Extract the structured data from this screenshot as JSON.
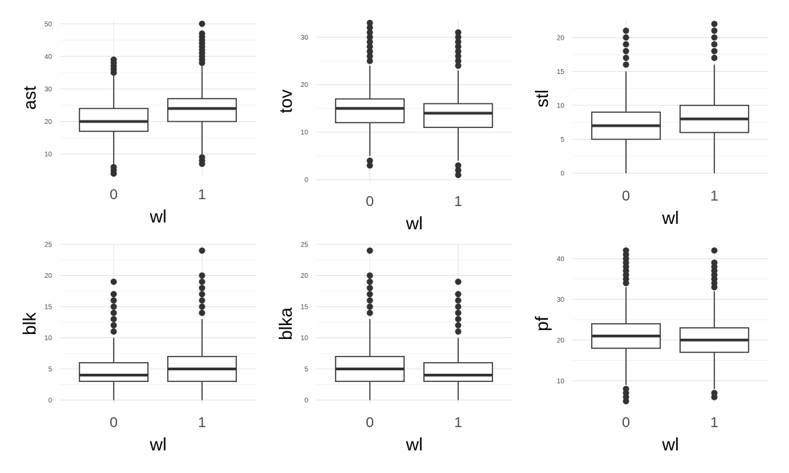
{
  "chart_data": [
    {
      "type": "box",
      "xlabel": "wl",
      "ylabel": "ast",
      "categories": [
        "0",
        "1"
      ],
      "ylim": [
        3.5,
        51
      ],
      "yticks": [
        10,
        20,
        30,
        40,
        50
      ],
      "yminor": [
        15,
        25,
        35,
        45
      ],
      "boxes": [
        {
          "category": "0",
          "q1": 17,
          "median": 20,
          "q3": 24,
          "whisker_low": 7,
          "whisker_high": 34,
          "outliers": [
            4,
            5,
            6,
            35,
            36,
            37,
            38,
            39
          ]
        },
        {
          "category": "1",
          "q1": 20,
          "median": 24,
          "q3": 27,
          "whisker_low": 10,
          "whisker_high": 37,
          "outliers": [
            7,
            8,
            9,
            38,
            39,
            40,
            41,
            42,
            43,
            44,
            45,
            46,
            47,
            50
          ]
        }
      ]
    },
    {
      "type": "box",
      "xlabel": "wl",
      "ylabel": "tov",
      "categories": [
        "0",
        "1"
      ],
      "ylim": [
        -0.5,
        33.5
      ],
      "yticks": [
        0,
        10,
        20,
        30
      ],
      "yminor": [
        5,
        15,
        25
      ],
      "boxes": [
        {
          "category": "0",
          "q1": 12,
          "median": 15,
          "q3": 17,
          "whisker_low": 5,
          "whisker_high": 24,
          "outliers": [
            3,
            4,
            25,
            26,
            27,
            28,
            29,
            30,
            31,
            32,
            33
          ]
        },
        {
          "category": "1",
          "q1": 11,
          "median": 14,
          "q3": 16,
          "whisker_low": 4,
          "whisker_high": 23,
          "outliers": [
            1,
            2,
            3,
            24,
            25,
            26,
            27,
            28,
            29,
            30,
            31
          ]
        }
      ]
    },
    {
      "type": "box",
      "xlabel": "wl",
      "ylabel": "stl",
      "categories": [
        "0",
        "1"
      ],
      "ylim": [
        -0.5,
        22.5
      ],
      "yticks": [
        0,
        5,
        10,
        15,
        20
      ],
      "yminor": [
        2.5,
        7.5,
        12.5,
        17.5
      ],
      "boxes": [
        {
          "category": "0",
          "q1": 5,
          "median": 7,
          "q3": 9,
          "whisker_low": 0,
          "whisker_high": 15,
          "outliers": [
            16,
            17,
            18,
            19,
            20,
            21
          ]
        },
        {
          "category": "1",
          "q1": 6,
          "median": 8,
          "q3": 10,
          "whisker_low": 0,
          "whisker_high": 16,
          "outliers": [
            17,
            18,
            19,
            20,
            21,
            22
          ]
        }
      ]
    },
    {
      "type": "box",
      "xlabel": "wl",
      "ylabel": "blk",
      "categories": [
        "0",
        "1"
      ],
      "ylim": [
        -0.5,
        25
      ],
      "yticks": [
        0,
        5,
        10,
        15,
        20,
        25
      ],
      "yminor": [
        2.5,
        7.5,
        12.5,
        17.5,
        22.5
      ],
      "boxes": [
        {
          "category": "0",
          "q1": 3,
          "median": 4,
          "q3": 6,
          "whisker_low": 0,
          "whisker_high": 10,
          "outliers": [
            11,
            12,
            13,
            14,
            15,
            16,
            17,
            19
          ]
        },
        {
          "category": "1",
          "q1": 3,
          "median": 5,
          "q3": 7,
          "whisker_low": 0,
          "whisker_high": 13,
          "outliers": [
            14,
            15,
            16,
            17,
            18,
            19,
            20,
            24
          ]
        }
      ]
    },
    {
      "type": "box",
      "xlabel": "wl",
      "ylabel": "blka",
      "categories": [
        "0",
        "1"
      ],
      "ylim": [
        -0.5,
        25
      ],
      "yticks": [
        0,
        5,
        10,
        15,
        20,
        25
      ],
      "yminor": [
        2.5,
        7.5,
        12.5,
        17.5,
        22.5
      ],
      "boxes": [
        {
          "category": "0",
          "q1": 3,
          "median": 5,
          "q3": 7,
          "whisker_low": 0,
          "whisker_high": 13,
          "outliers": [
            14,
            15,
            16,
            17,
            18,
            19,
            20,
            24
          ]
        },
        {
          "category": "1",
          "q1": 3,
          "median": 4,
          "q3": 6,
          "whisker_low": 0,
          "whisker_high": 10,
          "outliers": [
            11,
            12,
            13,
            14,
            15,
            16,
            17,
            19
          ]
        }
      ]
    },
    {
      "type": "box",
      "xlabel": "wl",
      "ylabel": "pf",
      "categories": [
        "0",
        "1"
      ],
      "ylim": [
        4.5,
        43.5
      ],
      "yticks": [
        10,
        20,
        30,
        40
      ],
      "yminor": [
        15,
        25,
        35
      ],
      "boxes": [
        {
          "category": "0",
          "q1": 18,
          "median": 21,
          "q3": 24,
          "whisker_low": 9,
          "whisker_high": 33,
          "outliers": [
            5,
            6,
            7,
            8,
            34,
            35,
            36,
            37,
            38,
            39,
            40,
            41,
            42
          ]
        },
        {
          "category": "1",
          "q1": 17,
          "median": 20,
          "q3": 23,
          "whisker_low": 8,
          "whisker_high": 32,
          "outliers": [
            6,
            7,
            33,
            34,
            35,
            36,
            37,
            38,
            39,
            42
          ]
        }
      ]
    }
  ]
}
